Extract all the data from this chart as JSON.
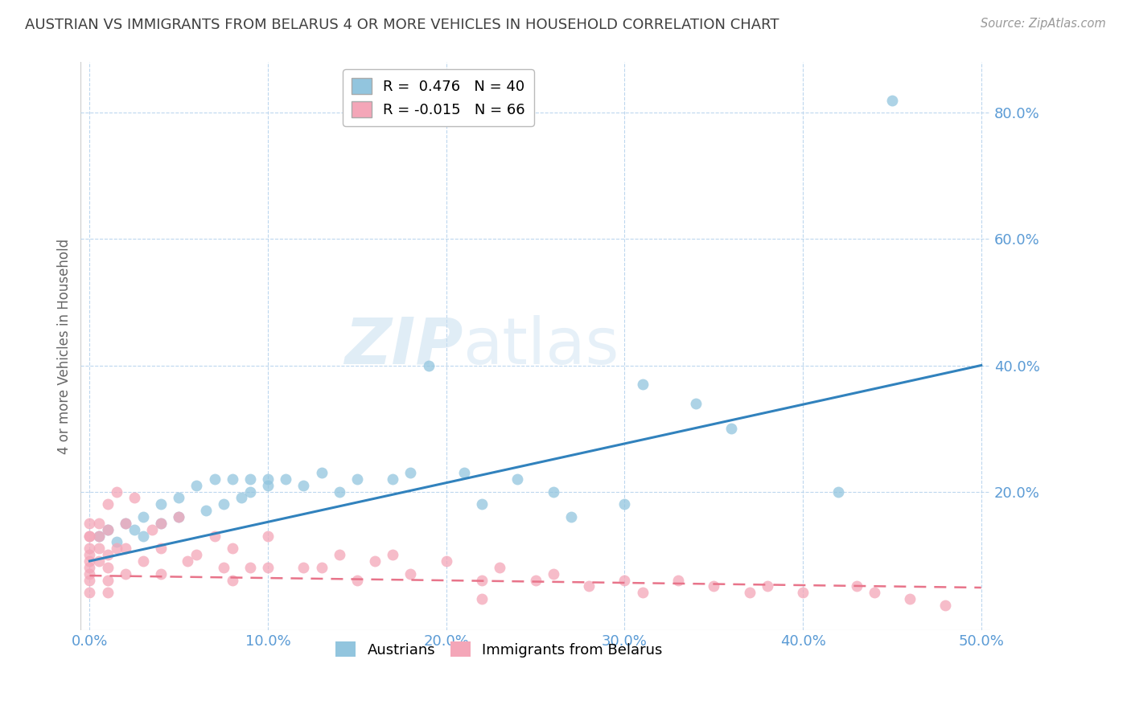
{
  "title": "AUSTRIAN VS IMMIGRANTS FROM BELARUS 4 OR MORE VEHICLES IN HOUSEHOLD CORRELATION CHART",
  "source": "Source: ZipAtlas.com",
  "ylabel": "4 or more Vehicles in Household",
  "xlabel": "",
  "xlim": [
    -0.005,
    0.505
  ],
  "ylim": [
    -0.02,
    0.88
  ],
  "xticks": [
    0.0,
    0.1,
    0.2,
    0.3,
    0.4,
    0.5
  ],
  "yticks": [
    0.2,
    0.4,
    0.6,
    0.8
  ],
  "blue_R": 0.476,
  "blue_N": 40,
  "pink_R": -0.015,
  "pink_N": 66,
  "blue_color": "#92c5de",
  "pink_color": "#f4a6b8",
  "blue_line_color": "#3182bd",
  "pink_line_color": "#e8748a",
  "watermark_zip": "ZIP",
  "watermark_atlas": "atlas",
  "blue_scatter_x": [
    0.005,
    0.01,
    0.015,
    0.02,
    0.025,
    0.03,
    0.03,
    0.04,
    0.04,
    0.05,
    0.05,
    0.06,
    0.065,
    0.07,
    0.075,
    0.08,
    0.085,
    0.09,
    0.09,
    0.1,
    0.1,
    0.11,
    0.12,
    0.13,
    0.14,
    0.15,
    0.17,
    0.18,
    0.19,
    0.21,
    0.22,
    0.24,
    0.26,
    0.27,
    0.3,
    0.31,
    0.34,
    0.36,
    0.42,
    0.45
  ],
  "blue_scatter_y": [
    0.13,
    0.14,
    0.12,
    0.15,
    0.14,
    0.16,
    0.13,
    0.18,
    0.15,
    0.19,
    0.16,
    0.21,
    0.17,
    0.22,
    0.18,
    0.22,
    0.19,
    0.22,
    0.2,
    0.22,
    0.21,
    0.22,
    0.21,
    0.23,
    0.2,
    0.22,
    0.22,
    0.23,
    0.4,
    0.23,
    0.18,
    0.22,
    0.2,
    0.16,
    0.18,
    0.37,
    0.34,
    0.3,
    0.2,
    0.82
  ],
  "pink_scatter_x": [
    0.0,
    0.0,
    0.0,
    0.0,
    0.0,
    0.0,
    0.0,
    0.0,
    0.0,
    0.0,
    0.005,
    0.005,
    0.005,
    0.005,
    0.01,
    0.01,
    0.01,
    0.01,
    0.01,
    0.01,
    0.015,
    0.015,
    0.02,
    0.02,
    0.02,
    0.025,
    0.03,
    0.035,
    0.04,
    0.04,
    0.04,
    0.05,
    0.055,
    0.06,
    0.07,
    0.075,
    0.08,
    0.08,
    0.09,
    0.1,
    0.1,
    0.12,
    0.13,
    0.14,
    0.15,
    0.16,
    0.17,
    0.18,
    0.2,
    0.22,
    0.22,
    0.23,
    0.25,
    0.26,
    0.28,
    0.3,
    0.31,
    0.33,
    0.35,
    0.37,
    0.38,
    0.4,
    0.43,
    0.44,
    0.46,
    0.48
  ],
  "pink_scatter_y": [
    0.07,
    0.09,
    0.11,
    0.13,
    0.15,
    0.13,
    0.06,
    0.04,
    0.08,
    0.1,
    0.09,
    0.13,
    0.15,
    0.11,
    0.06,
    0.04,
    0.08,
    0.1,
    0.14,
    0.18,
    0.11,
    0.2,
    0.11,
    0.07,
    0.15,
    0.19,
    0.09,
    0.14,
    0.07,
    0.11,
    0.15,
    0.16,
    0.09,
    0.1,
    0.13,
    0.08,
    0.06,
    0.11,
    0.08,
    0.08,
    0.13,
    0.08,
    0.08,
    0.1,
    0.06,
    0.09,
    0.1,
    0.07,
    0.09,
    0.06,
    0.03,
    0.08,
    0.06,
    0.07,
    0.05,
    0.06,
    0.04,
    0.06,
    0.05,
    0.04,
    0.05,
    0.04,
    0.05,
    0.04,
    0.03,
    0.02
  ]
}
